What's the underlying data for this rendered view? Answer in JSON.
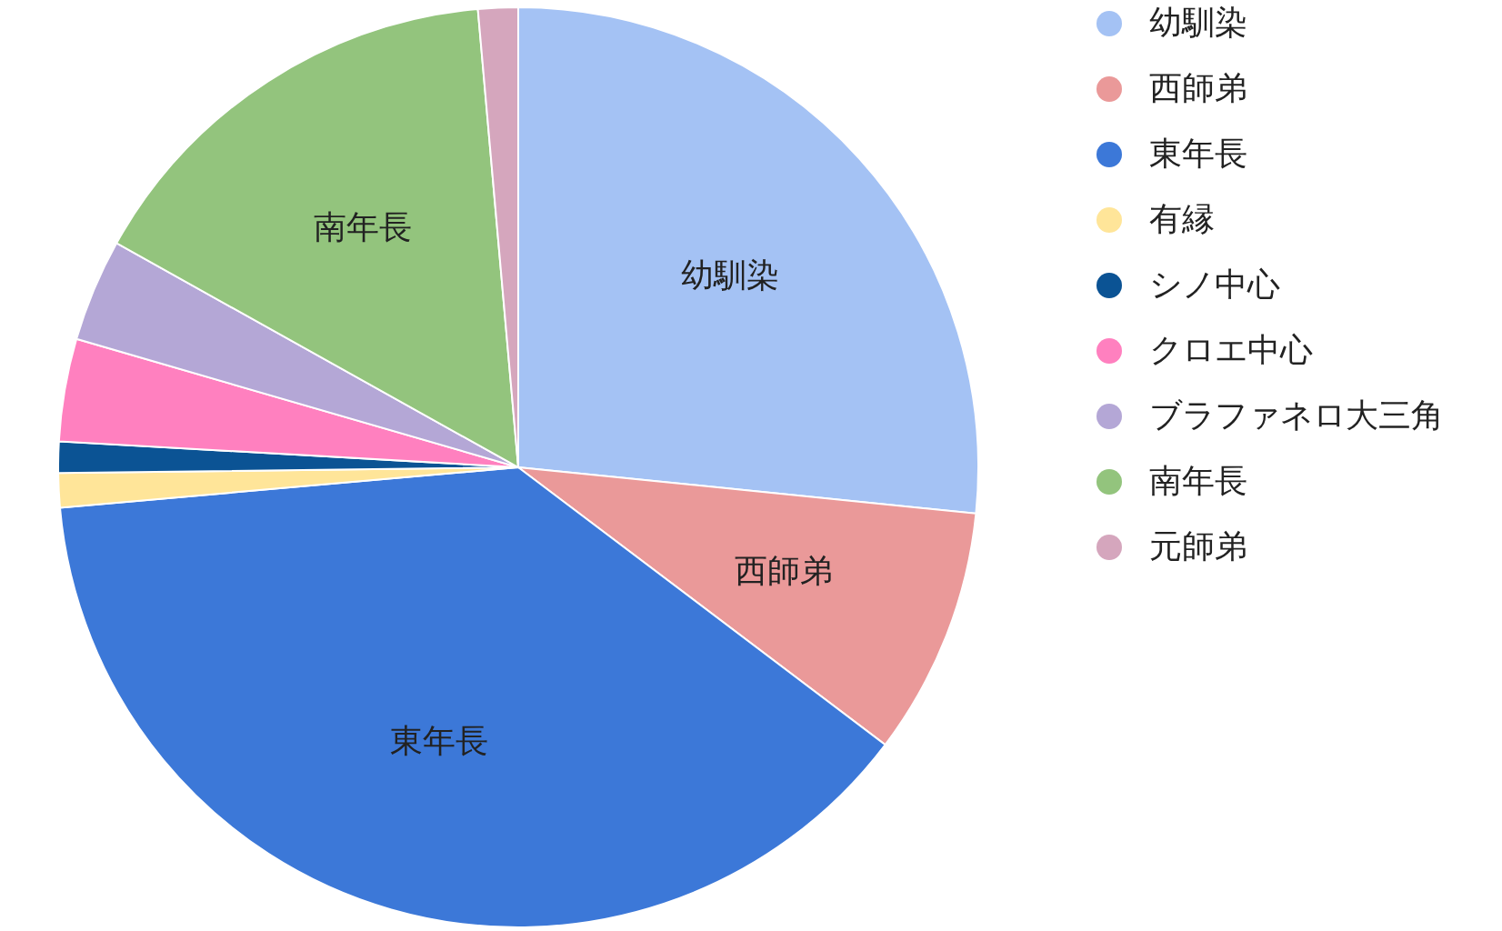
{
  "chart_data": {
    "type": "pie",
    "categories": [
      "幼馴染",
      "西師弟",
      "東年長",
      "有縁",
      "シノ中心",
      "クロエ中心",
      "ブラファネロ大三角",
      "南年長",
      "元師弟"
    ],
    "values": [
      26.6,
      8.7,
      38.3,
      1.2,
      1.1,
      3.6,
      3.6,
      15.5,
      1.4
    ],
    "colors": [
      "#a4c2f4",
      "#ea9999",
      "#3c78d8",
      "#ffe599",
      "#0b5394",
      "#ff80bf",
      "#b4a7d6",
      "#93c47d",
      "#d5a6bd"
    ],
    "legend": "right"
  }
}
